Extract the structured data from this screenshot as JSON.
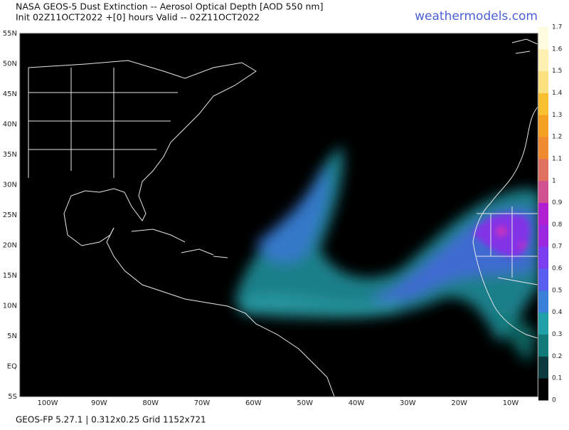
{
  "header": {
    "title": "NASA GEOS-5 Dust Extinction -- Aerosol Optical Depth [AOD 550 nm]",
    "subtitle": "Init 02Z11OCT2022 +[0] hours Valid -- 02Z11OCT2022",
    "brand": "weathermodels.com"
  },
  "map": {
    "lat_labels": [
      "55N",
      "50N",
      "45N",
      "40N",
      "35N",
      "30N",
      "25N",
      "20N",
      "15N",
      "10N",
      "5N",
      "EQ",
      "5S"
    ],
    "lon_labels": [
      "100W",
      "90W",
      "80W",
      "70W",
      "60W",
      "50W",
      "40W",
      "30W",
      "20W",
      "10W"
    ]
  },
  "colorbar": {
    "labels": [
      "0",
      "0.1",
      "0.2",
      "0.3",
      "0.4",
      "0.5",
      "0.6",
      "0.7",
      "0.8",
      "0.9",
      "1",
      "1.1",
      "1.2",
      "1.3",
      "1.4",
      "1.5",
      "1.6",
      "1.7"
    ],
    "colors": [
      "#000000",
      "#0b3a3c",
      "#127a78",
      "#1f9fa8",
      "#3a7fd8",
      "#5a5ef0",
      "#7a3ef0",
      "#9a28e0",
      "#b020d0",
      "#d05090",
      "#e07060",
      "#f08a30",
      "#f4a020",
      "#f8c030",
      "#fbe080",
      "#fdf0b0",
      "#fffbe0"
    ]
  },
  "footer": "GEOS-FP 5.27.1 | 0.312x0.25 Grid 1152x721"
}
